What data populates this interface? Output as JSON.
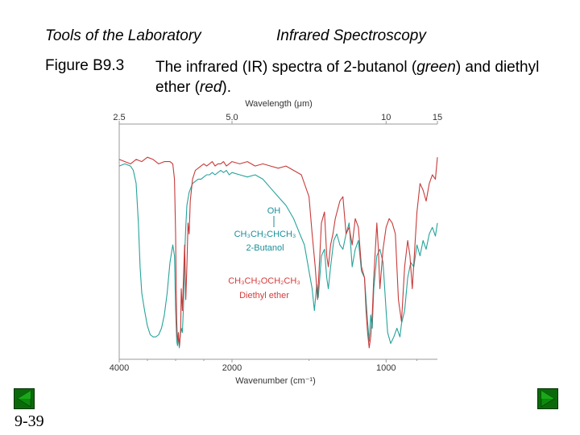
{
  "header": {
    "left": "Tools of the Laboratory",
    "right": "Infrared Spectroscopy"
  },
  "figure": {
    "label": "Figure B9.3",
    "caption_prefix": "The infrared (IR) spectra of 2-butanol (",
    "caption_green": "green",
    "caption_mid": ") and diethyl ether (",
    "caption_red": "red",
    "caption_suffix": ")."
  },
  "page_number": "9-39",
  "chart_data": {
    "type": "line",
    "top_axis": {
      "label": "Wavelength (μm)",
      "ticks": [
        "2.5",
        "5.0",
        "10",
        "15"
      ],
      "tick_wavenumbers": [
        4000,
        2000,
        1000,
        666.7
      ]
    },
    "bottom_axis": {
      "label": "Wavenumber (cm⁻¹)",
      "ticks": [
        "4000",
        "2000",
        "1000"
      ],
      "tick_values": [
        4000,
        2000,
        1000
      ]
    },
    "xlim": [
      4000,
      667
    ],
    "ylim": [
      0,
      100
    ],
    "annotations": {
      "butanol": [
        "OH",
        "CH₃CH₂CHCH₃",
        "2-Butanol"
      ],
      "ether": [
        "CH₃CH₂OCH₂CH₃",
        "Diethyl ether"
      ]
    },
    "colors": {
      "butanol": "#26a39a",
      "ether": "#c83a3a",
      "annotation_butanol": "#1a8f9a",
      "annotation_ether": "#d63b3b",
      "frame": "#9a9a9a",
      "nav_button": "#0a6a0a"
    },
    "series": [
      {
        "key": "butanol",
        "x": [
          4000,
          3900,
          3800,
          3750,
          3700,
          3660,
          3630,
          3600,
          3550,
          3500,
          3450,
          3400,
          3350,
          3300,
          3250,
          3200,
          3150,
          3100,
          3050,
          3020,
          3000,
          2980,
          2965,
          2950,
          2935,
          2920,
          2900,
          2880,
          2860,
          2840,
          2820,
          2800,
          2760,
          2700,
          2650,
          2600,
          2550,
          2500,
          2450,
          2400,
          2350,
          2300,
          2250,
          2200,
          2150,
          2100,
          2050,
          2000,
          1950,
          1900,
          1850,
          1800,
          1750,
          1700,
          1650,
          1600,
          1560,
          1530,
          1500,
          1480,
          1465,
          1450,
          1440,
          1420,
          1400,
          1385,
          1375,
          1360,
          1340,
          1320,
          1300,
          1280,
          1260,
          1240,
          1220,
          1200,
          1180,
          1160,
          1140,
          1120,
          1110,
          1100,
          1090,
          1080,
          1060,
          1040,
          1020,
          1000,
          990,
          970,
          950,
          930,
          910,
          900,
          880,
          860,
          840,
          820,
          800,
          780,
          760,
          740,
          720,
          700,
          680,
          667
        ],
        "y": [
          86,
          87,
          86,
          84,
          78,
          60,
          40,
          28,
          20,
          13,
          9,
          8,
          8,
          9,
          12,
          18,
          28,
          42,
          50,
          45,
          20,
          6,
          4,
          8,
          3,
          8,
          12,
          10,
          22,
          45,
          58,
          68,
          74,
          78,
          79,
          80,
          80,
          81,
          82,
          82,
          83,
          82,
          83,
          84,
          83,
          84,
          82,
          83,
          82,
          81,
          82,
          80,
          76,
          72,
          68,
          62,
          55,
          50,
          38,
          30,
          20,
          32,
          26,
          45,
          48,
          35,
          30,
          40,
          52,
          55,
          50,
          48,
          55,
          60,
          40,
          48,
          52,
          38,
          35,
          15,
          6,
          18,
          12,
          30,
          45,
          48,
          42,
          20,
          10,
          5,
          8,
          12,
          8,
          14,
          20,
          35,
          42,
          40,
          50,
          45,
          52,
          48,
          55,
          58,
          54,
          60
        ]
      },
      {
        "key": "ether",
        "x": [
          4000,
          3900,
          3800,
          3700,
          3600,
          3500,
          3400,
          3300,
          3200,
          3100,
          3050,
          3020,
          3000,
          2990,
          2980,
          2970,
          2960,
          2950,
          2940,
          2930,
          2920,
          2910,
          2900,
          2880,
          2860,
          2840,
          2820,
          2800,
          2780,
          2760,
          2740,
          2700,
          2650,
          2600,
          2550,
          2500,
          2450,
          2400,
          2350,
          2300,
          2250,
          2200,
          2150,
          2100,
          2050,
          2000,
          1950,
          1900,
          1850,
          1800,
          1750,
          1700,
          1650,
          1600,
          1550,
          1500,
          1480,
          1460,
          1445,
          1430,
          1420,
          1400,
          1385,
          1375,
          1360,
          1345,
          1330,
          1300,
          1280,
          1260,
          1240,
          1220,
          1200,
          1180,
          1160,
          1140,
          1130,
          1120,
          1110,
          1100,
          1090,
          1080,
          1060,
          1050,
          1040,
          1020,
          1000,
          980,
          960,
          940,
          920,
          900,
          880,
          860,
          845,
          830,
          800,
          780,
          760,
          740,
          720,
          700,
          680,
          667
        ],
        "y": [
          89,
          88,
          87,
          89,
          88,
          90,
          89,
          87,
          88,
          88,
          87,
          80,
          55,
          30,
          15,
          8,
          6,
          10,
          6,
          4,
          8,
          12,
          30,
          20,
          35,
          50,
          25,
          40,
          60,
          55,
          70,
          80,
          84,
          85,
          86,
          87,
          86,
          87,
          88,
          86,
          87,
          87,
          88,
          86,
          87,
          88,
          87,
          88,
          86,
          87,
          86,
          85,
          86,
          84,
          82,
          72,
          55,
          40,
          25,
          45,
          60,
          65,
          45,
          40,
          50,
          55,
          62,
          70,
          72,
          55,
          58,
          50,
          62,
          58,
          40,
          35,
          20,
          10,
          3,
          8,
          18,
          35,
          60,
          48,
          30,
          48,
          58,
          62,
          60,
          55,
          25,
          15,
          40,
          52,
          45,
          30,
          65,
          78,
          75,
          70,
          78,
          82,
          80,
          90
        ]
      }
    ]
  }
}
